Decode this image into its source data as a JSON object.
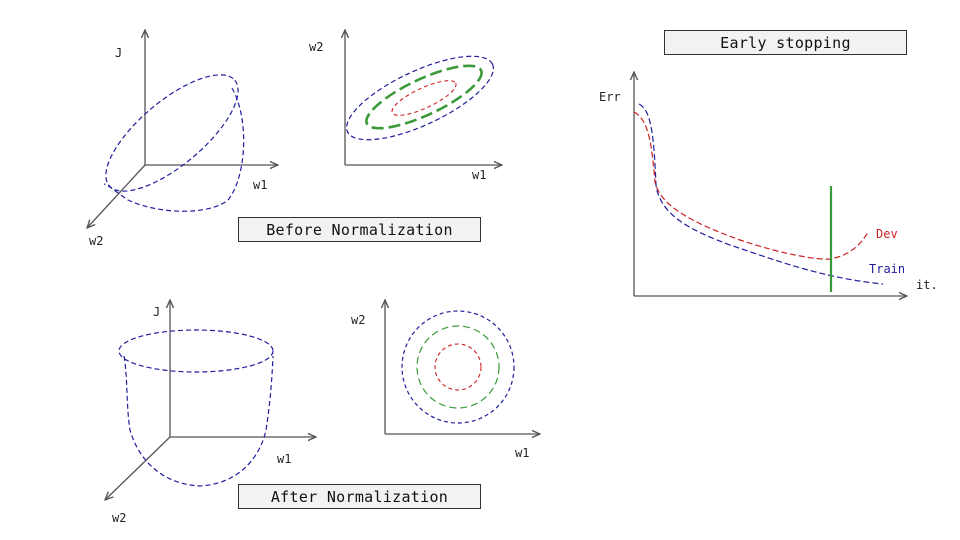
{
  "before": {
    "caption": "Before Normalization",
    "surface3d": {
      "j_label": "J",
      "w1_label": "w1",
      "w2_label": "w2"
    },
    "contour": {
      "w1_label": "w1",
      "w2_label": "w2"
    }
  },
  "after": {
    "caption": "After Normalization",
    "surface3d": {
      "j_label": "J",
      "w1_label": "w1",
      "w2_label": "w2"
    },
    "contour": {
      "w1_label": "w1",
      "w2_label": "w2"
    }
  },
  "early_stopping": {
    "title": "Early stopping",
    "y_label": "Err",
    "x_label": "it.",
    "series": [
      {
        "name": "Dev",
        "color": "#cc2222"
      },
      {
        "name": "Train",
        "color": "#1f1f9e"
      }
    ],
    "stop_marker_color": "#3a9a3a"
  },
  "colors": {
    "axis": "#555555",
    "blue": "#1f1f9e",
    "green": "#3a9a3a",
    "red": "#cc2222"
  }
}
